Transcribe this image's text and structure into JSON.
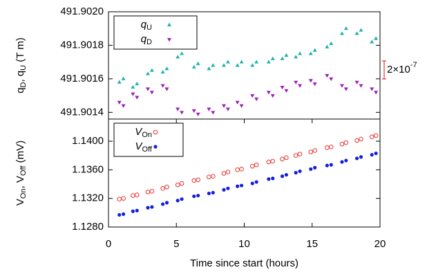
{
  "chart_data": [
    {
      "type": "scatter",
      "ylabel": [
        "q",
        "D",
        ", q",
        "U",
        " (T m)"
      ],
      "xlim": [
        0,
        20
      ],
      "ylim": [
        491.90136,
        491.902
      ],
      "yticks": [
        491.9014,
        491.9016,
        491.9018,
        {
          "value": 491.902,
          "label": "491.9020"
        }
      ],
      "legend": "upper left",
      "annotation": {
        "base": "2×10",
        "exponent": "-7"
      },
      "x": [
        0.8,
        1.1,
        1.8,
        2.1,
        2.9,
        3.2,
        4.0,
        4.3,
        5.1,
        5.4,
        6.3,
        6.6,
        7.4,
        7.7,
        8.5,
        8.8,
        9.5,
        9.8,
        10.6,
        10.9,
        11.8,
        12.1,
        12.8,
        13.1,
        13.8,
        14.1,
        14.9,
        15.2,
        16.1,
        16.4,
        17.2,
        17.5,
        18.3,
        18.6,
        19.4,
        19.7
      ],
      "series": [
        {
          "name": "q",
          "subscript": "U",
          "color": "#20b2aa",
          "marker": "triangle-up",
          "values": [
            491.90158,
            491.9016,
            491.90155,
            491.90157,
            491.90163,
            491.90165,
            491.90164,
            491.90166,
            491.90173,
            491.90175,
            491.90167,
            491.90169,
            491.90166,
            491.90168,
            491.90168,
            491.9017,
            491.90168,
            491.9017,
            491.90168,
            491.9017,
            491.9017,
            491.90172,
            491.90172,
            491.90174,
            491.90173,
            491.90175,
            491.90175,
            491.90177,
            491.90179,
            491.90181,
            491.90187,
            491.9019,
            491.90187,
            491.90189,
            491.90182,
            491.90184
          ]
        },
        {
          "name": "q",
          "subscript": "D",
          "color": "#9b1fb5",
          "marker": "triangle-down",
          "values": [
            491.90146,
            491.90144,
            491.90151,
            491.90149,
            491.90154,
            491.90152,
            491.90156,
            491.90154,
            491.90142,
            491.9014,
            491.90141,
            491.90139,
            491.90142,
            491.9014,
            491.90144,
            491.90142,
            491.90146,
            491.90144,
            491.9015,
            491.90148,
            491.90152,
            491.9015,
            491.90155,
            491.90153,
            491.90158,
            491.90156,
            491.90159,
            491.90157,
            491.90162,
            491.9016,
            491.90156,
            491.90154,
            491.90158,
            491.90156,
            491.90154,
            491.90152
          ]
        }
      ]
    },
    {
      "type": "scatter",
      "ylabel": [
        "V",
        "On",
        ",  V",
        "Off",
        " (mV)"
      ],
      "xlabel": "Time since start (hours)",
      "xlim": [
        0,
        20
      ],
      "xticks": [
        0,
        5,
        10,
        15,
        20
      ],
      "ylim": [
        1.128,
        1.1431
      ],
      "yticks": [
        {
          "value": 1.128,
          "label": "1.1280"
        },
        {
          "value": 1.132,
          "label": "1.1320"
        },
        {
          "value": 1.136,
          "label": "1.1360"
        },
        {
          "value": 1.14,
          "label": "1.1400"
        }
      ],
      "legend": "upper left",
      "x": [
        0.8,
        1.1,
        1.8,
        2.1,
        2.9,
        3.2,
        4.0,
        4.3,
        5.1,
        5.4,
        6.3,
        6.6,
        7.4,
        7.7,
        8.5,
        8.8,
        9.5,
        9.8,
        10.6,
        10.9,
        11.8,
        12.1,
        12.8,
        13.1,
        13.8,
        14.1,
        14.9,
        15.2,
        16.1,
        16.4,
        17.2,
        17.5,
        18.3,
        18.6,
        19.4,
        19.7
      ],
      "series": [
        {
          "name": "V",
          "subscript": "On",
          "color": "#e8312a",
          "marker": "circle-open",
          "values": [
            1.1319,
            1.132,
            1.1324,
            1.1325,
            1.1329,
            1.133,
            1.1334,
            1.1336,
            1.1339,
            1.1341,
            1.1345,
            1.1346,
            1.135,
            1.1351,
            1.1355,
            1.1357,
            1.136,
            1.1361,
            1.1365,
            1.1367,
            1.1371,
            1.1372,
            1.1375,
            1.1377,
            1.138,
            1.1382,
            1.1385,
            1.1387,
            1.1391,
            1.1392,
            1.1396,
            1.1398,
            1.1401,
            1.1403,
            1.1406,
            1.1408
          ]
        },
        {
          "name": "V",
          "subscript": "Off",
          "color": "#1520d8",
          "marker": "circle-filled",
          "values": [
            1.1297,
            1.1298,
            1.1302,
            1.1303,
            1.1307,
            1.1308,
            1.1312,
            1.1314,
            1.1317,
            1.1319,
            1.1323,
            1.1324,
            1.1327,
            1.1328,
            1.1332,
            1.1334,
            1.1337,
            1.1338,
            1.1341,
            1.1343,
            1.1347,
            1.1348,
            1.1351,
            1.1353,
            1.1356,
            1.1358,
            1.1361,
            1.1363,
            1.1366,
            1.1367,
            1.1371,
            1.1373,
            1.1376,
            1.1378,
            1.1381,
            1.1383
          ]
        }
      ]
    }
  ]
}
